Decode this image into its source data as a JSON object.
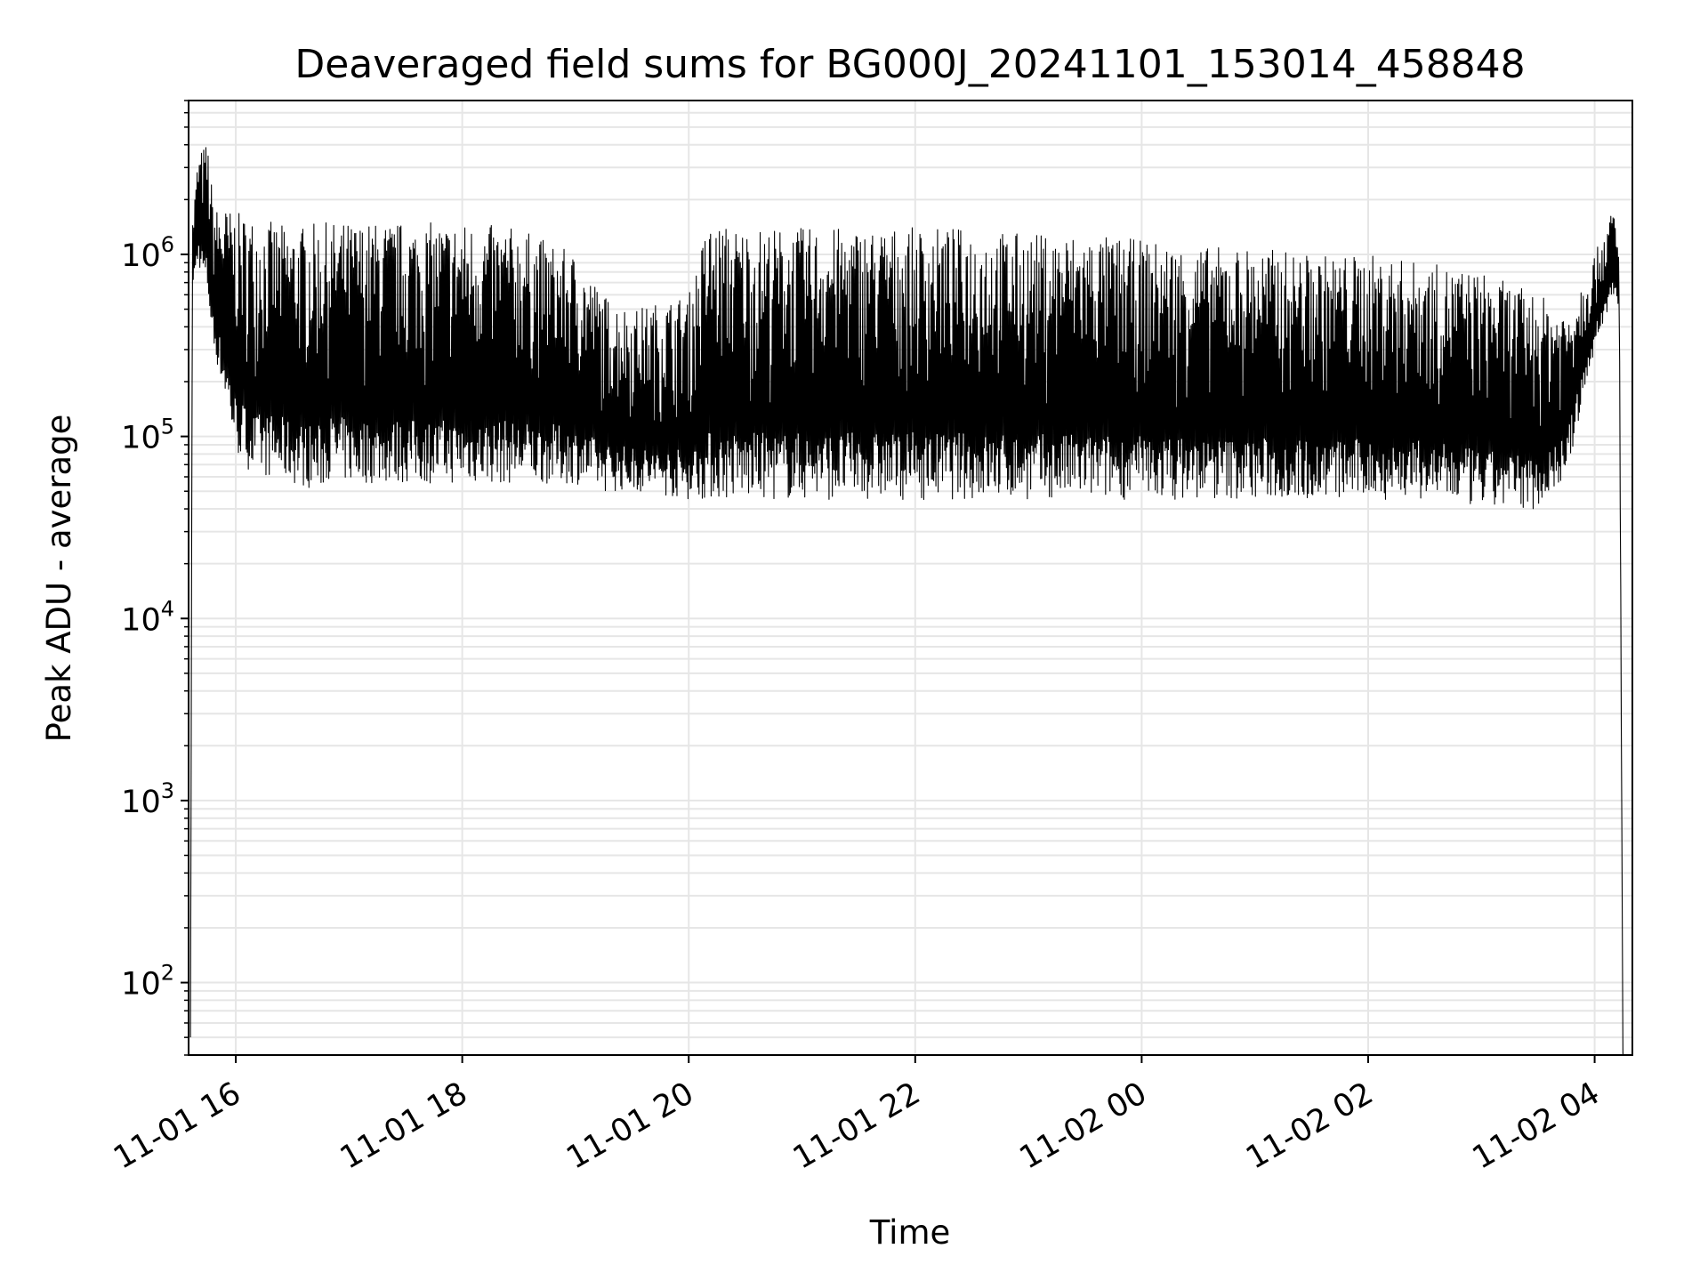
{
  "chart_data": {
    "type": "line",
    "title": "Deaveraged field sums for BG000J_20241101_153014_458848",
    "xlabel": "Time",
    "ylabel": "Peak ADU - average",
    "yscale": "log",
    "ylim": [
      40,
      7000000
    ],
    "xlim": [
      "2024-11-01 15:35",
      "2024-11-02 04:20"
    ],
    "grid": true,
    "x_ticks": [
      {
        "label": "11-01 16",
        "time": "2024-11-01 16:00"
      },
      {
        "label": "11-01 18",
        "time": "2024-11-01 18:00"
      },
      {
        "label": "11-01 20",
        "time": "2024-11-01 20:00"
      },
      {
        "label": "11-01 22",
        "time": "2024-11-01 22:00"
      },
      {
        "label": "11-02 00",
        "time": "2024-11-02 00:00"
      },
      {
        "label": "11-02 02",
        "time": "2024-11-02 02:00"
      },
      {
        "label": "11-02 04",
        "time": "2024-11-02 04:00"
      }
    ],
    "y_ticks": [
      {
        "base": "10",
        "exp": "2",
        "value": 100
      },
      {
        "base": "10",
        "exp": "3",
        "value": 1000
      },
      {
        "base": "10",
        "exp": "4",
        "value": 10000
      },
      {
        "base": "10",
        "exp": "5",
        "value": 100000
      },
      {
        "base": "10",
        "exp": "6",
        "value": 1000000
      }
    ],
    "line_color": "#000000",
    "grid_color": "#e6e6e6",
    "series": [
      {
        "x": [
          "2024-11-01 15:36",
          "2024-11-01 15:37",
          "2024-11-01 15:40",
          "2024-11-01 15:45",
          "2024-11-01 15:48",
          "2024-11-01 15:50",
          "2024-11-01 15:55",
          "2024-11-01 16:00",
          "2024-11-01 16:10",
          "2024-11-01 16:20",
          "2024-11-01 16:30",
          "2024-11-01 16:45",
          "2024-11-01 16:50",
          "2024-11-01 17:00",
          "2024-11-01 17:30",
          "2024-11-01 18:00",
          "2024-11-01 18:30",
          "2024-11-01 19:00",
          "2024-11-01 19:15",
          "2024-11-01 19:30",
          "2024-11-01 20:00",
          "2024-11-01 20:10",
          "2024-11-01 20:30",
          "2024-11-01 21:00",
          "2024-11-01 21:30",
          "2024-11-01 22:00",
          "2024-11-01 22:30",
          "2024-11-01 23:00",
          "2024-11-01 23:30",
          "2024-11-02 00:00",
          "2024-11-02 00:30",
          "2024-11-02 01:00",
          "2024-11-02 01:30",
          "2024-11-02 02:00",
          "2024-11-02 02:30",
          "2024-11-02 03:00",
          "2024-11-02 03:30",
          "2024-11-02 03:45",
          "2024-11-02 04:00",
          "2024-11-02 04:10",
          "2024-11-02 04:13",
          "2024-11-02 04:15"
        ],
        "peak": [
          50,
          1500000,
          3500000,
          4200000,
          2000000,
          1800000,
          1800000,
          1700000,
          1600000,
          1500000,
          1400000,
          1500000,
          1500000,
          1500000,
          1500000,
          1500000,
          1400000,
          1000000,
          600000,
          500000,
          600000,
          1500000,
          1400000,
          1400000,
          1400000,
          1400000,
          1400000,
          1300000,
          1300000,
          1200000,
          1100000,
          1100000,
          1000000,
          1000000,
          900000,
          800000,
          600000,
          500000,
          1000000,
          1800000,
          1000000,
          40
        ],
        "trough": [
          50,
          600000,
          900000,
          600000,
          300000,
          250000,
          150000,
          80000,
          60000,
          60000,
          55000,
          50000,
          60000,
          55000,
          55000,
          55000,
          55000,
          55000,
          50000,
          50000,
          45000,
          45000,
          45000,
          45000,
          45000,
          45000,
          45000,
          45000,
          45000,
          45000,
          45000,
          45000,
          45000,
          45000,
          45000,
          40000,
          40000,
          60000,
          300000,
          600000,
          500000,
          40
        ]
      }
    ]
  }
}
